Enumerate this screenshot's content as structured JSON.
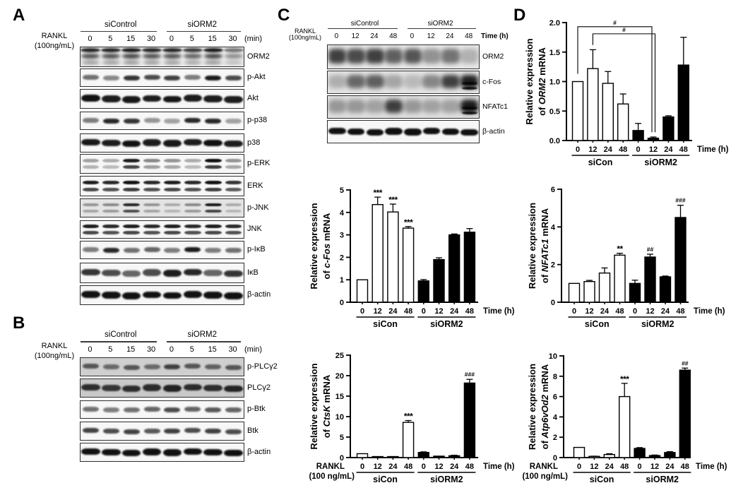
{
  "panels": {
    "A": "A",
    "B": "B",
    "C": "C",
    "D": "D"
  },
  "blots": {
    "A": {
      "treatment": [
        "RANKL",
        "(100ng/mL)"
      ],
      "groups": [
        "siControl",
        "siORM2"
      ],
      "timepoints": [
        "0",
        "5",
        "15",
        "30",
        "0",
        "5",
        "15",
        "30"
      ],
      "time_unit": "(min)",
      "rows": [
        {
          "label": "ORM2",
          "type": "noisyA",
          "bg": "#eaeaea",
          "intensities": [
            0.85,
            0.85,
            0.9,
            0.85,
            0.85,
            0.75,
            0.9,
            0.5
          ]
        },
        {
          "label": "p-Akt",
          "type": "single",
          "intensities": [
            0.55,
            0.45,
            0.8,
            0.7,
            0.75,
            0.5,
            0.9,
            0.7
          ]
        },
        {
          "label": "Akt",
          "type": "single",
          "strong": true,
          "intensities": [
            0.95,
            0.9,
            0.92,
            0.9,
            0.92,
            0.9,
            0.9,
            0.9
          ]
        },
        {
          "label": "p-p38",
          "type": "single",
          "intensities": [
            0.5,
            0.85,
            0.8,
            0.4,
            0.35,
            0.85,
            0.85,
            0.35
          ]
        },
        {
          "label": "p38",
          "type": "single",
          "strong": true,
          "intensities": [
            0.92,
            0.9,
            0.95,
            0.9,
            0.92,
            0.9,
            0.95,
            0.9
          ]
        },
        {
          "label": "p-ERK",
          "type": "double",
          "intensities": [
            0.35,
            0.3,
            0.9,
            0.45,
            0.4,
            0.3,
            0.95,
            0.4
          ]
        },
        {
          "label": "ERK",
          "type": "double",
          "strong": true,
          "intensities": [
            0.9,
            0.85,
            0.95,
            0.85,
            0.9,
            0.85,
            0.95,
            0.8
          ]
        },
        {
          "label": "p-JNK",
          "type": "double",
          "bg": "#e4e4e4",
          "intensities": [
            0.35,
            0.4,
            0.85,
            0.35,
            0.25,
            0.4,
            0.9,
            0.25
          ]
        },
        {
          "label": "JNK",
          "type": "double",
          "strong": true,
          "intensities": [
            0.9,
            0.85,
            0.9,
            0.85,
            0.9,
            0.85,
            0.9,
            0.85
          ]
        },
        {
          "label": "p-IκB",
          "type": "single",
          "intensities": [
            0.5,
            0.85,
            0.55,
            0.6,
            0.5,
            0.9,
            0.5,
            0.55
          ]
        },
        {
          "label": "IκB",
          "type": "single",
          "strong": true,
          "intensities": [
            0.8,
            0.7,
            0.6,
            0.7,
            0.9,
            0.85,
            0.6,
            0.8
          ]
        },
        {
          "label": "β-actin",
          "type": "single",
          "strong": true,
          "intensities": [
            0.95,
            0.95,
            0.95,
            0.95,
            0.95,
            0.95,
            0.95,
            0.95
          ]
        }
      ]
    },
    "B": {
      "treatment": [
        "RANKL",
        "(100ng/mL)"
      ],
      "groups": [
        "siControl",
        "siORM2"
      ],
      "timepoints": [
        "0",
        "5",
        "15",
        "30",
        "0",
        "5",
        "15",
        "30"
      ],
      "time_unit": "(min)",
      "rows": [
        {
          "label": "p-PLCγ2",
          "type": "single",
          "bg": "#cfcfcf",
          "intensities": [
            0.6,
            0.5,
            0.6,
            0.5,
            0.7,
            0.6,
            0.55,
            0.6
          ]
        },
        {
          "label": "PLCγ2",
          "type": "single",
          "bg": "#c9c9c9",
          "strong": true,
          "intensities": [
            0.8,
            0.75,
            0.8,
            0.8,
            0.85,
            0.8,
            0.8,
            0.85
          ]
        },
        {
          "label": "p-Btk",
          "type": "single",
          "intensities": [
            0.55,
            0.5,
            0.55,
            0.6,
            0.7,
            0.6,
            0.65,
            0.6
          ]
        },
        {
          "label": "Btk",
          "type": "single",
          "intensities": [
            0.75,
            0.7,
            0.75,
            0.65,
            0.75,
            0.7,
            0.75,
            0.7
          ]
        },
        {
          "label": "β-actin",
          "type": "single",
          "strong": true,
          "intensities": [
            0.95,
            0.95,
            0.95,
            0.95,
            0.95,
            0.95,
            0.95,
            0.95
          ]
        }
      ]
    },
    "C": {
      "treatment": [
        "RANKL",
        "(100ng/mL)"
      ],
      "groups": [
        "siControl",
        "siORM2"
      ],
      "timepoints": [
        "0",
        "12",
        "24",
        "48",
        "0",
        "12",
        "24",
        "48"
      ],
      "time_unit": "Time (h)",
      "rows": [
        {
          "label": "ORM2",
          "type": "noisyC",
          "bg": "#e6e6e6",
          "intensities": [
            0.8,
            0.75,
            0.8,
            0.65,
            0.7,
            0.4,
            0.55,
            0.25
          ]
        },
        {
          "label": "c-Fos",
          "type": "noisyC",
          "bg": "#e3e3e3",
          "intensities": [
            0.25,
            0.6,
            0.65,
            0.3,
            0.2,
            0.45,
            0.8,
            0.95
          ]
        },
        {
          "label": "NFATc1",
          "type": "noisyC",
          "bg": "#dedede",
          "intensities": [
            0.35,
            0.35,
            0.3,
            0.8,
            0.35,
            0.3,
            0.3,
            0.97
          ]
        },
        {
          "label": "β-actin",
          "type": "single",
          "strong": true,
          "intensities": [
            0.95,
            0.95,
            0.95,
            0.95,
            0.95,
            0.95,
            0.95,
            0.95
          ]
        }
      ]
    }
  },
  "chart_data": [
    {
      "id": "cfos",
      "panel": "C",
      "type": "bar",
      "ylabel_lines": [
        "Relative expression",
        "of c-Fos mRNA"
      ],
      "gene": "c-Fos",
      "ylim": [
        0,
        5
      ],
      "yticks": [
        "0",
        "1",
        "2",
        "3",
        "4",
        "5"
      ],
      "categories": [
        "0",
        "12",
        "24",
        "48",
        "0",
        "12",
        "24",
        "48"
      ],
      "xlabel": "Time (h)",
      "group_labels": [
        "siCon",
        "siORM2"
      ],
      "series": [
        {
          "name": "siCon",
          "fill": "#ffffff",
          "values": [
            1.0,
            4.35,
            4.02,
            3.3
          ],
          "errors": [
            0,
            0.33,
            0.35,
            0.07
          ],
          "annotations": [
            "",
            "***",
            "***",
            "***"
          ]
        },
        {
          "name": "siORM2",
          "fill": "#000000",
          "values": [
            0.95,
            1.9,
            3.0,
            3.12
          ],
          "errors": [
            0.06,
            0.08,
            0.04,
            0.16
          ],
          "annotations": [
            "",
            "",
            "",
            ""
          ]
        }
      ]
    },
    {
      "id": "ctsk",
      "panel": "C",
      "type": "bar",
      "ylabel_lines": [
        "Relative expression",
        "of CtsK mRNA"
      ],
      "gene": "CtsK",
      "ylim": [
        0,
        25
      ],
      "yticks": [
        "0",
        "5",
        "10",
        "15",
        "20",
        "25"
      ],
      "categories": [
        "0",
        "12",
        "24",
        "48",
        "0",
        "12",
        "24",
        "48"
      ],
      "xlabel": "Time (h)",
      "group_labels": [
        "siCon",
        "siORM2"
      ],
      "rankl_label": [
        "RANKL",
        "(100 ng/mL)"
      ],
      "series": [
        {
          "name": "siCon",
          "fill": "#ffffff",
          "values": [
            0.95,
            0.25,
            0.25,
            8.6
          ],
          "errors": [
            0,
            0,
            0,
            0.45
          ],
          "annotations": [
            "",
            "",
            "",
            "***"
          ]
        },
        {
          "name": "siORM2",
          "fill": "#000000",
          "values": [
            1.25,
            0.35,
            0.45,
            18.2
          ],
          "errors": [
            0.15,
            0,
            0.12,
            0.9
          ],
          "annotations": [
            "",
            "",
            "",
            "###"
          ]
        }
      ]
    },
    {
      "id": "orm2",
      "panel": "D",
      "type": "bar",
      "ylabel_lines": [
        "Relative expression",
        "of ORM2 mRNA"
      ],
      "gene": "ORM2",
      "ylim": [
        0,
        2
      ],
      "yticks": [
        "0.0",
        "0.5",
        "1.0",
        "1.5",
        "2.0"
      ],
      "categories": [
        "0",
        "12",
        "24",
        "48",
        "0",
        "12",
        "24",
        "48"
      ],
      "xlabel": "Time (h)",
      "group_labels": [
        "siCon",
        "siORM2"
      ],
      "series": [
        {
          "name": "siCon",
          "fill": "#ffffff",
          "values": [
            1.0,
            1.22,
            0.97,
            0.62
          ],
          "errors": [
            0,
            0.32,
            0.2,
            0.17
          ],
          "annotations": [
            "",
            "",
            "",
            ""
          ]
        },
        {
          "name": "siORM2",
          "fill": "#000000",
          "values": [
            0.17,
            0.04,
            0.4,
            1.28
          ],
          "errors": [
            0.12,
            0.02,
            0.02,
            0.47
          ],
          "annotations": [
            "",
            "",
            "",
            ""
          ]
        }
      ],
      "brackets": [
        {
          "from": 0,
          "to": 5,
          "y": 1.93,
          "left_end": 1.13,
          "right_end": 0.14,
          "label": "#"
        },
        {
          "from": 1,
          "to": 5,
          "y": 1.81,
          "left_end": 1.62,
          "right_end": 0.14,
          "label": "#"
        }
      ]
    },
    {
      "id": "nfatc1",
      "panel": "D",
      "type": "bar",
      "ylabel_lines": [
        "Relative expression",
        "of NFATc1 mRNA"
      ],
      "gene": "NFATc1",
      "ylim": [
        0,
        6
      ],
      "yticks": [
        "0",
        "2",
        "4",
        "6"
      ],
      "categories": [
        "0",
        "12",
        "24",
        "48",
        "0",
        "12",
        "24",
        "48"
      ],
      "xlabel": "Time (h)",
      "group_labels": [
        "siCon",
        "siORM2"
      ],
      "series": [
        {
          "name": "siCon",
          "fill": "#ffffff",
          "values": [
            1.0,
            1.1,
            1.55,
            2.5
          ],
          "errors": [
            0,
            0.06,
            0.27,
            0.1
          ],
          "annotations": [
            "",
            "",
            "",
            "**"
          ]
        },
        {
          "name": "siORM2",
          "fill": "#000000",
          "values": [
            1.0,
            2.4,
            1.35,
            4.5
          ],
          "errors": [
            0.17,
            0.15,
            0.04,
            0.65
          ],
          "annotations": [
            "",
            "##",
            "",
            "###"
          ]
        }
      ]
    },
    {
      "id": "atp",
      "panel": "D",
      "type": "bar",
      "ylabel_lines": [
        "Relative expression",
        "of Atp6vOd2 mRNA"
      ],
      "gene": "Atp6vOd2",
      "ylim": [
        0,
        10
      ],
      "yticks": [
        "0",
        "2",
        "4",
        "6",
        "8",
        "10"
      ],
      "categories": [
        "0",
        "12",
        "24",
        "48",
        "0",
        "12",
        "24",
        "48"
      ],
      "xlabel": "Time (h)",
      "group_labels": [
        "siCon",
        "siORM2"
      ],
      "rankl_label": [
        "RANKL",
        "(100 ng/mL)"
      ],
      "series": [
        {
          "name": "siCon",
          "fill": "#ffffff",
          "values": [
            1.0,
            0.12,
            0.3,
            6.0
          ],
          "errors": [
            0,
            0.02,
            0.08,
            1.3
          ],
          "annotations": [
            "",
            "",
            "",
            "***"
          ]
        },
        {
          "name": "siORM2",
          "fill": "#000000",
          "values": [
            0.9,
            0.2,
            0.5,
            8.6
          ],
          "errors": [
            0.08,
            0.05,
            0.08,
            0.2
          ],
          "annotations": [
            "",
            "",
            "",
            "##"
          ]
        }
      ]
    }
  ]
}
